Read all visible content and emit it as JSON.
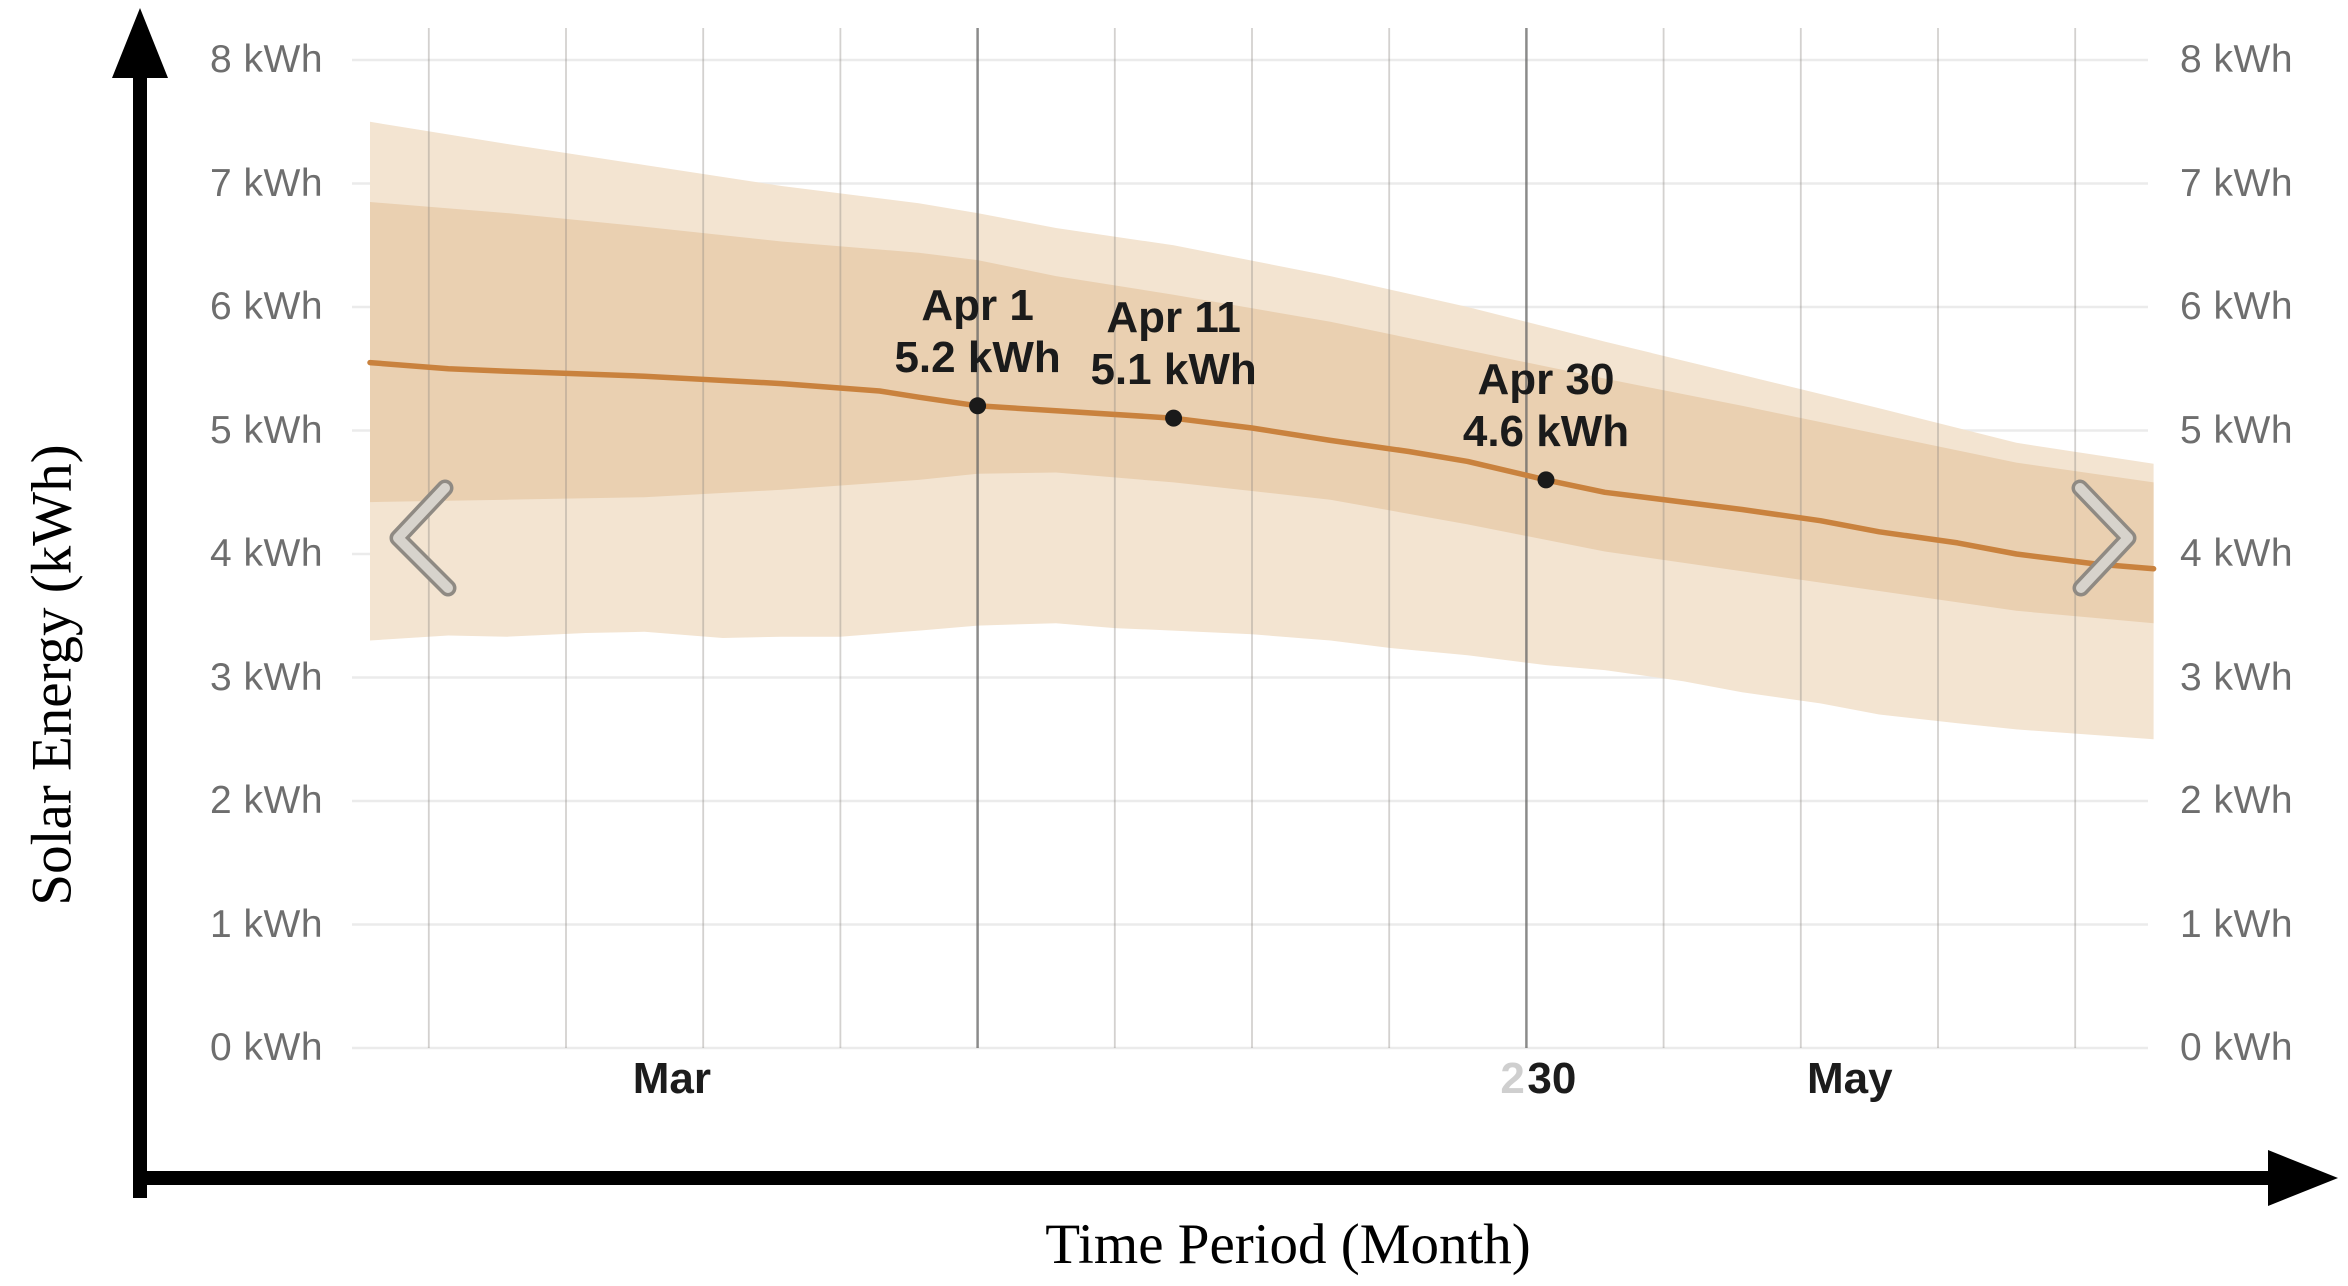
{
  "y_axis": {
    "title": "Solar Energy (kWh)",
    "ticks": [
      {
        "label": "8 kWh",
        "value": 8
      },
      {
        "label": "7 kWh",
        "value": 7
      },
      {
        "label": "6 kWh",
        "value": 6
      },
      {
        "label": "5 kWh",
        "value": 5
      },
      {
        "label": "4 kWh",
        "value": 4
      },
      {
        "label": "3 kWh",
        "value": 3
      },
      {
        "label": "2 kWh",
        "value": 2
      },
      {
        "label": "1 kWh",
        "value": 1
      },
      {
        "label": "0 kWh",
        "value": 0
      }
    ]
  },
  "x_axis": {
    "title": "Time Period (Month)",
    "labels": [
      {
        "text": "Mar",
        "day": 15.4,
        "ghost": false
      },
      {
        "text": "2",
        "day": 58.3,
        "ghost": true
      },
      {
        "text": "30",
        "day": 60.3,
        "ghost": false
      },
      {
        "text": "May",
        "day": 75.5,
        "ghost": false
      }
    ]
  },
  "chart_data": {
    "type": "line",
    "title": "",
    "xlabel": "Time Period (Month)",
    "ylabel": "Solar Energy (kWh)",
    "ylim": [
      0,
      8
    ],
    "x_unit": "days since Mar 1",
    "x_range_days": [
      0,
      91
    ],
    "grid": true,
    "weekly_gridline_days": [
      3,
      10,
      17,
      24,
      31,
      38,
      45,
      52,
      59,
      66,
      73,
      80,
      87
    ],
    "dark_gridline_days": [
      31,
      59
    ],
    "series": [
      {
        "name": "median_forecast_kwh",
        "points": [
          [
            0,
            5.55
          ],
          [
            4,
            5.5
          ],
          [
            7,
            5.48
          ],
          [
            14,
            5.44
          ],
          [
            21,
            5.38
          ],
          [
            26,
            5.32
          ],
          [
            28,
            5.27
          ],
          [
            31,
            5.2
          ],
          [
            35,
            5.16
          ],
          [
            41,
            5.1
          ],
          [
            45,
            5.02
          ],
          [
            49,
            4.92
          ],
          [
            53,
            4.83
          ],
          [
            56,
            4.75
          ],
          [
            60,
            4.6
          ],
          [
            63,
            4.5
          ],
          [
            67,
            4.42
          ],
          [
            70,
            4.36
          ],
          [
            74,
            4.27
          ],
          [
            77,
            4.18
          ],
          [
            81,
            4.09
          ],
          [
            84,
            4.0
          ],
          [
            88,
            3.92
          ],
          [
            91,
            3.88
          ]
        ]
      }
    ],
    "bands": {
      "inner_high": [
        [
          0,
          6.85
        ],
        [
          7,
          6.76
        ],
        [
          14,
          6.65
        ],
        [
          21,
          6.53
        ],
        [
          28,
          6.44
        ],
        [
          31,
          6.38
        ],
        [
          35,
          6.25
        ],
        [
          41,
          6.1
        ],
        [
          49,
          5.88
        ],
        [
          56,
          5.65
        ],
        [
          63,
          5.42
        ],
        [
          70,
          5.2
        ],
        [
          77,
          4.97
        ],
        [
          84,
          4.74
        ],
        [
          91,
          4.58
        ]
      ],
      "inner_low": [
        [
          0,
          4.42
        ],
        [
          7,
          4.44
        ],
        [
          14,
          4.46
        ],
        [
          21,
          4.52
        ],
        [
          28,
          4.6
        ],
        [
          31,
          4.65
        ],
        [
          35,
          4.66
        ],
        [
          41,
          4.58
        ],
        [
          49,
          4.44
        ],
        [
          56,
          4.24
        ],
        [
          63,
          4.02
        ],
        [
          70,
          3.86
        ],
        [
          77,
          3.7
        ],
        [
          84,
          3.54
        ],
        [
          91,
          3.44
        ]
      ],
      "outer_high": [
        [
          0,
          7.5
        ],
        [
          7,
          7.32
        ],
        [
          14,
          7.15
        ],
        [
          21,
          6.98
        ],
        [
          28,
          6.84
        ],
        [
          31,
          6.76
        ],
        [
          35,
          6.64
        ],
        [
          41,
          6.5
        ],
        [
          49,
          6.25
        ],
        [
          56,
          6.0
        ],
        [
          63,
          5.72
        ],
        [
          70,
          5.45
        ],
        [
          77,
          5.18
        ],
        [
          84,
          4.9
        ],
        [
          91,
          4.73
        ]
      ],
      "outer_low": [
        [
          0,
          3.3
        ],
        [
          4,
          3.34
        ],
        [
          7,
          3.33
        ],
        [
          11,
          3.36
        ],
        [
          14,
          3.37
        ],
        [
          18,
          3.32
        ],
        [
          21,
          3.33
        ],
        [
          24,
          3.33
        ],
        [
          28,
          3.38
        ],
        [
          31,
          3.42
        ],
        [
          35,
          3.44
        ],
        [
          38,
          3.4
        ],
        [
          41,
          3.38
        ],
        [
          45,
          3.35
        ],
        [
          49,
          3.3
        ],
        [
          52,
          3.24
        ],
        [
          56,
          3.18
        ],
        [
          60,
          3.1
        ],
        [
          63,
          3.06
        ],
        [
          67,
          2.97
        ],
        [
          70,
          2.88
        ],
        [
          74,
          2.79
        ],
        [
          77,
          2.7
        ],
        [
          81,
          2.63
        ],
        [
          84,
          2.58
        ],
        [
          91,
          2.5
        ]
      ]
    },
    "annotations": [
      {
        "date": "Apr 1",
        "value_label": "5.2 kWh",
        "day": 31,
        "value": 5.2
      },
      {
        "date": "Apr 11",
        "value_label": "5.1 kWh",
        "day": 41,
        "value": 5.1
      },
      {
        "date": "Apr 30",
        "value_label": "4.6 kWh",
        "day": 60,
        "value": 4.6
      }
    ],
    "colors": {
      "median_line": "#c9823e",
      "inner_band": "#ead0b1",
      "outer_band": "#f3e4d1",
      "dot": "#1a1a1a",
      "h_gridline": "#ebebeb",
      "v_gridline": "rgba(140,135,128,0.38)",
      "v_gridline_dark": "rgba(95,95,95,0.62)",
      "axis": "#000000",
      "tick_text": "#6e6e6e",
      "label_text": "#1c1c1c",
      "ghost_text": "#cfcfcf",
      "chevron_dark": "#8f8a83",
      "chevron_light": "#d7d3cc"
    }
  },
  "nav": {
    "left_label": "scroll backward",
    "right_label": "scroll forward"
  }
}
